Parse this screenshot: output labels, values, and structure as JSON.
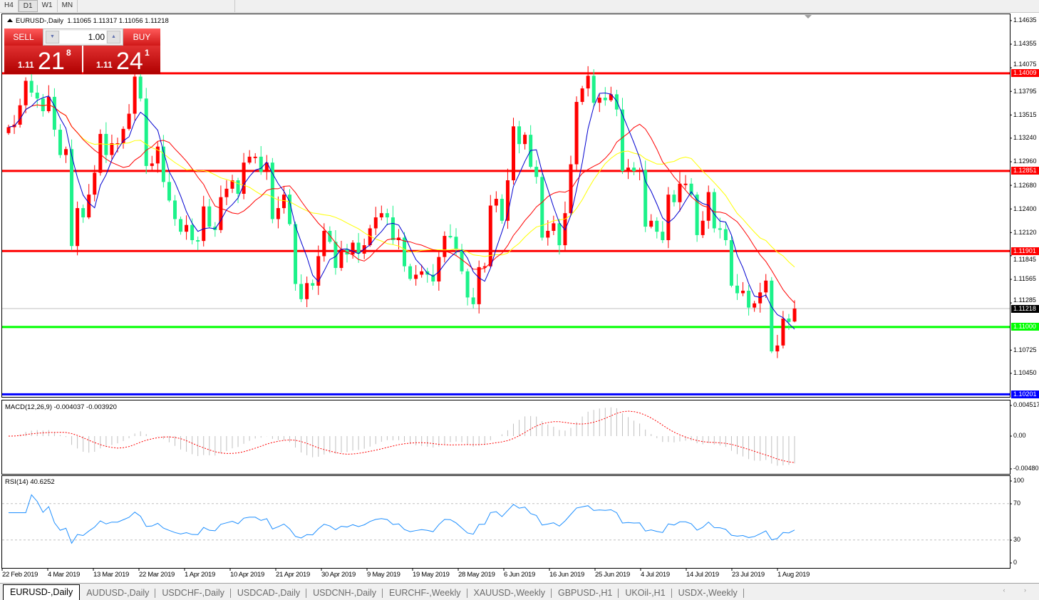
{
  "toolbar": {
    "timeframes": [
      {
        "label": "H4",
        "active": false
      },
      {
        "label": "D1",
        "active": true
      },
      {
        "label": "W1",
        "active": false
      },
      {
        "label": "MN",
        "active": false
      }
    ]
  },
  "chart": {
    "symbol": "EURUSD-,Daily",
    "ohlc": "1.11065 1.11317 1.11056 1.11218"
  },
  "trade_panel": {
    "sell_label": "SELL",
    "buy_label": "BUY",
    "lot": "1.00",
    "spin_down_icon": "▼",
    "spin_up_icon": "▲",
    "sell_price": {
      "big": "1.11",
      "main": "21",
      "pip": "8"
    },
    "buy_price": {
      "big": "1.11",
      "main": "24",
      "pip": "1"
    }
  },
  "price_axis": {
    "labels": [
      "1.14635",
      "1.14355",
      "1.14075",
      "1.13795",
      "1.13515",
      "1.13240",
      "1.12960",
      "1.12680",
      "1.12400",
      "1.12120",
      "1.11845",
      "1.11565",
      "1.11285",
      "1.10725",
      "1.10450"
    ]
  },
  "levels": [
    {
      "price": "1.14009",
      "color": "#ff0000",
      "text_color": "#ffffff"
    },
    {
      "price": "1.12851",
      "color": "#ff0000",
      "text_color": "#ffffff"
    },
    {
      "price": "1.11901",
      "color": "#ff0000",
      "text_color": "#ffffff"
    },
    {
      "price": "1.11000",
      "color": "#00ff00",
      "text_color": "#ffffff"
    },
    {
      "price": "1.10201",
      "color": "#0000ff",
      "text_color": "#ffffff"
    }
  ],
  "current_price": {
    "price": "1.11218",
    "color": "#000000"
  },
  "macd": {
    "label": "MACD(12,26,9) -0.004037 -0.003920",
    "axis": [
      "0.004517",
      "0.00",
      "-0.00480"
    ]
  },
  "rsi": {
    "label": "RSI(14) 40.6252",
    "axis": [
      "100",
      "70",
      "30",
      "0"
    ],
    "levels": [
      70,
      30
    ]
  },
  "date_axis": [
    "22 Feb 2019",
    "4 Mar 2019",
    "13 Mar 2019",
    "22 Mar 2019",
    "1 Apr 2019",
    "10 Apr 2019",
    "21 Apr 2019",
    "30 Apr 2019",
    "9 May 2019",
    "19 May 2019",
    "28 May 2019",
    "6 Jun 2019",
    "16 Jun 2019",
    "25 Jun 2019",
    "4 Jul 2019",
    "14 Jul 2019",
    "23 Jul 2019",
    "1 Aug 2019"
  ],
  "symbol_tabs": [
    {
      "label": "EURUSD-,Daily",
      "active": true
    },
    {
      "label": "AUDUSD-,Daily"
    },
    {
      "label": "USDCHF-,Daily"
    },
    {
      "label": "USDCAD-,Daily"
    },
    {
      "label": "USDCNH-,Daily"
    },
    {
      "label": "EURCHF-,Weekly"
    },
    {
      "label": "XAUUSD-,Weekly"
    },
    {
      "label": "GBPUSD-,H1"
    },
    {
      "label": "UKOil-,H1"
    },
    {
      "label": "USDX-,Weekly"
    }
  ],
  "tab_scroll": "‹ ›",
  "colors": {
    "bull_candle": "#ff0000",
    "bear_candle": "#1cf28a",
    "ma_fast": "#0000d0",
    "ma_mid": "#ff0000",
    "ma_slow": "#ffff00",
    "macd_hist": "#c0c0c0",
    "macd_signal": "#ff0000",
    "rsi_line": "#1e8fff"
  },
  "chart_data": {
    "type": "candlestick",
    "ylim": [
      1.1017,
      1.1471
    ],
    "first_open": 1.133,
    "closes": [
      1.1337,
      1.134,
      1.1363,
      1.1392,
      1.1378,
      1.1371,
      1.1356,
      1.1373,
      1.1334,
      1.1304,
      1.1311,
      1.1196,
      1.1241,
      1.123,
      1.1257,
      1.1283,
      1.1329,
      1.1304,
      1.1318,
      1.1318,
      1.1335,
      1.1353,
      1.1397,
      1.1371,
      1.1291,
      1.1294,
      1.1314,
      1.1272,
      1.125,
      1.1228,
      1.1213,
      1.1221,
      1.1203,
      1.1202,
      1.1243,
      1.1219,
      1.1215,
      1.1254,
      1.1264,
      1.1274,
      1.1258,
      1.1295,
      1.1302,
      1.1302,
      1.1284,
      1.1295,
      1.1228,
      1.1241,
      1.1257,
      1.1222,
      1.1151,
      1.1133,
      1.1152,
      1.1149,
      1.1184,
      1.1214,
      1.1201,
      1.117,
      1.1192,
      1.1186,
      1.12,
      1.1187,
      1.1197,
      1.1217,
      1.123,
      1.1235,
      1.123,
      1.1203,
      1.1206,
      1.1172,
      1.1157,
      1.1162,
      1.1166,
      1.1162,
      1.1154,
      1.1183,
      1.1208,
      1.1207,
      1.1192,
      1.1166,
      1.1135,
      1.1127,
      1.1171,
      1.1172,
      1.1244,
      1.1252,
      1.1226,
      1.1274,
      1.1338,
      1.1317,
      1.1328,
      1.129,
      1.1278,
      1.1206,
      1.1214,
      1.1223,
      1.1197,
      1.1235,
      1.1293,
      1.1367,
      1.1383,
      1.1398,
      1.1366,
      1.1372,
      1.1369,
      1.1376,
      1.1358,
      1.1285,
      1.1289,
      1.1285,
      1.1286,
      1.1219,
      1.1226,
      1.1213,
      1.1203,
      1.1257,
      1.1248,
      1.127,
      1.127,
      1.1257,
      1.1209,
      1.1226,
      1.126,
      1.1217,
      1.1216,
      1.1203,
      1.1149,
      1.114,
      1.1143,
      1.1123,
      1.1128,
      1.1141,
      1.1155,
      1.1071,
      1.1078,
      1.111,
      1.1106,
      1.11218
    ],
    "last_bar": {
      "open": 1.11065,
      "high": 1.11317,
      "low": 1.11056,
      "close": 1.11218
    }
  }
}
